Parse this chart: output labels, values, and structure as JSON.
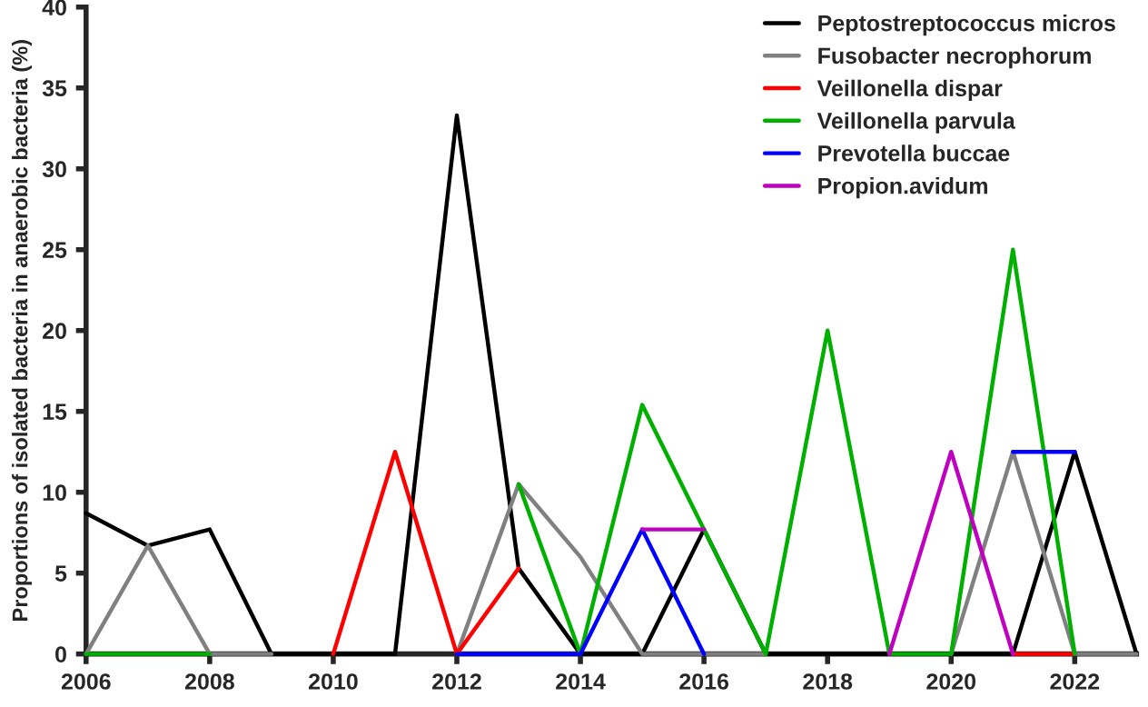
{
  "chart_data": {
    "type": "line",
    "ylabel": "Proportions of isolated bacteria in anaerobic bacteria (%)",
    "x": [
      2006,
      2007,
      2008,
      2009,
      2010,
      2011,
      2012,
      2013,
      2014,
      2015,
      2016,
      2017,
      2018,
      2019,
      2020,
      2021,
      2022,
      2023
    ],
    "series": [
      {
        "name": "Peptostreptococcus micros",
        "color": "#000000",
        "values": [
          8.7,
          6.7,
          7.7,
          0,
          0,
          0,
          33.3,
          5.3,
          0,
          0,
          7.7,
          0,
          0,
          0,
          0,
          0,
          12.5,
          0
        ]
      },
      {
        "name": "Fusobacter necrophorum",
        "color": "#808080",
        "values": [
          0,
          6.7,
          0,
          0,
          null,
          null,
          0,
          10.5,
          6,
          0,
          0,
          0,
          null,
          null,
          0,
          12.5,
          0,
          0
        ]
      },
      {
        "name": "Veillonella dispar",
        "color": "#ff0000",
        "values": [
          null,
          null,
          null,
          null,
          0,
          12.5,
          0,
          5.3,
          null,
          null,
          null,
          null,
          null,
          null,
          null,
          0,
          0,
          null
        ]
      },
      {
        "name": "Veillonella parvula",
        "color": "#00b000",
        "values": [
          0,
          0,
          0,
          null,
          null,
          null,
          null,
          10.5,
          0,
          15.4,
          7.7,
          0,
          20,
          0,
          0,
          25,
          0,
          null
        ]
      },
      {
        "name": "Prevotella buccae",
        "color": "#0000ff",
        "values": [
          null,
          null,
          null,
          null,
          null,
          null,
          0,
          0,
          0,
          7.7,
          0,
          null,
          null,
          null,
          null,
          12.5,
          12.5,
          null
        ]
      },
      {
        "name": "Propion.avidum",
        "color": "#c000c0",
        "values": [
          null,
          null,
          null,
          null,
          null,
          null,
          null,
          null,
          null,
          7.7,
          7.7,
          null,
          null,
          0,
          12.5,
          0,
          null,
          null
        ]
      }
    ],
    "xlim": [
      2006,
      2023
    ],
    "xticks": [
      2006,
      2008,
      2010,
      2012,
      2014,
      2016,
      2018,
      2020,
      2022
    ],
    "ylim": [
      0,
      40
    ],
    "yticks": [
      0,
      5,
      10,
      15,
      20,
      25,
      30,
      35,
      40
    ],
    "grid": false,
    "legend": "top right",
    "marker": "none",
    "line_style": "solid"
  }
}
